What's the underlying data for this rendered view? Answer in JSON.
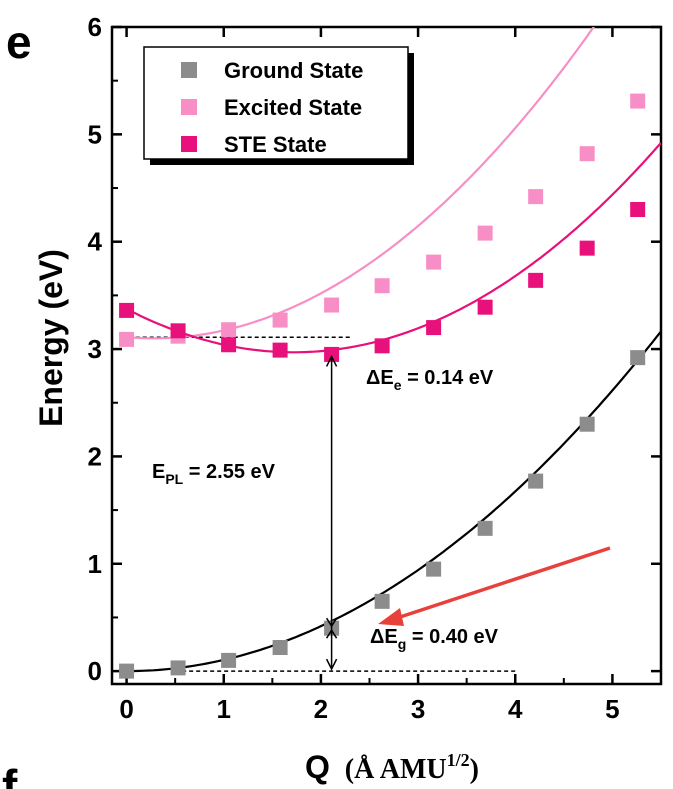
{
  "panel_label": "e",
  "next_panel_label": "f",
  "chart_data": {
    "type": "line",
    "xlabel": "Q",
    "xlabel_unit": "Å AMU",
    "xlabel_unit_sup": "1/2",
    "ylabel": "Energy (eV)",
    "xlim": [
      -0.15,
      5.5
    ],
    "ylim": [
      -0.12,
      6.0
    ],
    "xticks": [
      0,
      1,
      2,
      3,
      4,
      5
    ],
    "yticks": [
      0,
      1,
      2,
      3,
      4,
      5,
      6
    ],
    "legend_position": "top-left",
    "series": [
      {
        "name": "Ground State",
        "color": "#8c8c8c",
        "line_color": "#000000",
        "fit": {
          "a": 0.1046,
          "q0": 0.0,
          "c": 0.0
        },
        "x": [
          0,
          0.53,
          1.05,
          1.58,
          2.11,
          2.63,
          3.16,
          3.69,
          4.21,
          4.74,
          5.26
        ],
        "y": [
          0.0,
          0.03,
          0.1,
          0.22,
          0.4,
          0.65,
          0.95,
          1.33,
          1.77,
          2.3,
          2.92
        ]
      },
      {
        "name": "Excited State",
        "color": "#f78fc6",
        "line_color": "#f78fc6",
        "fit": {
          "a": 0.1415,
          "q0": 0.28,
          "c": 3.1
        },
        "x": [
          0,
          0.53,
          1.05,
          1.58,
          2.11,
          2.63,
          3.16,
          3.69,
          4.21,
          4.74,
          5.26
        ],
        "y": [
          3.09,
          3.12,
          3.18,
          3.27,
          3.41,
          3.59,
          3.81,
          4.08,
          4.42,
          4.82,
          5.31
        ]
      },
      {
        "name": "STE State",
        "color": "#e8107a",
        "line_color": "#e8107a",
        "fit": {
          "a": 0.1365,
          "q0": 1.72,
          "c": 2.97
        },
        "x": [
          0,
          0.53,
          1.05,
          1.58,
          2.11,
          2.63,
          3.16,
          3.69,
          4.21,
          4.74,
          5.26
        ],
        "y": [
          3.36,
          3.17,
          3.04,
          2.99,
          2.95,
          3.03,
          3.2,
          3.39,
          3.64,
          3.94,
          4.3
        ]
      }
    ],
    "annotations": {
      "delta_e_e": {
        "prefix": "ΔE",
        "sub": "e",
        "suffix": " = 0.14 eV"
      },
      "e_pl": {
        "prefix": "E",
        "sub": "PL",
        "suffix": " = 2.55 eV"
      },
      "delta_e_g": {
        "prefix": "ΔE",
        "sub": "g",
        "suffix": " = 0.40 eV"
      },
      "vertical_arrow_q": 2.11,
      "upper_dashed_y": 3.11,
      "upper_dashed_x": [
        -0.05,
        2.3
      ],
      "lower_dashed_y": 0.0,
      "lower_dashed_x": [
        0.5,
        4.0
      ],
      "arrow_color": "#e8403a"
    }
  }
}
